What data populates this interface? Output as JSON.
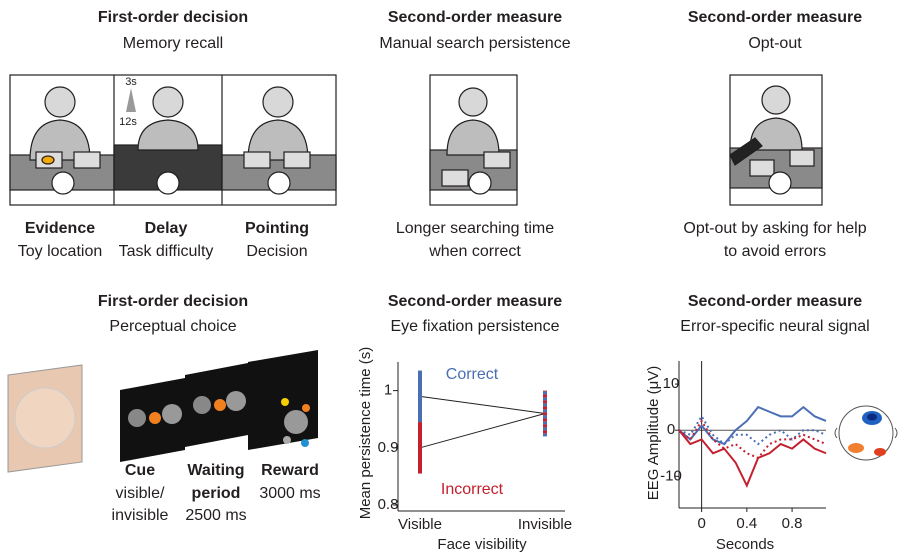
{
  "panels": [
    {
      "title": "First-order decision",
      "subtitle": "Memory recall",
      "captions": [
        {
          "head": "Evidence",
          "text": "Toy location"
        },
        {
          "head": "Delay",
          "text": "Task difficulty"
        },
        {
          "head": "Pointing",
          "text": "Decision"
        }
      ],
      "delay_labels": [
        "3s",
        "12s"
      ]
    },
    {
      "title": "Second-order measure",
      "subtitle": "Manual search persistence",
      "caption": [
        "Longer searching time",
        "when correct"
      ]
    },
    {
      "title": "Second-order measure",
      "subtitle": "Opt-out",
      "caption": [
        "Opt-out by asking for help",
        "to avoid errors"
      ]
    },
    {
      "title": "First-order decision",
      "subtitle": "Perceptual choice",
      "steps": [
        {
          "head": [
            "Cue"
          ],
          "text": [
            "visible/",
            "invisible"
          ]
        },
        {
          "head": [
            "Waiting",
            "period"
          ],
          "text": [
            "2500 ms"
          ]
        },
        {
          "head": [
            "Reward"
          ],
          "text": [
            "3000 ms"
          ]
        }
      ]
    },
    {
      "title": "Second-order measure",
      "subtitle": "Eye fixation persistence"
    },
    {
      "title": "Second-order measure",
      "subtitle": "Error-specific neural signal"
    }
  ],
  "chart_data": [
    {
      "type": "errorbar",
      "y_label": "Mean persistence time (s)",
      "x_label": "Face visibility",
      "categories": [
        "Visible",
        "Invisible"
      ],
      "series": [
        {
          "name": "Correct",
          "color": "#4a6fb5",
          "values": [
            0.99,
            0.96
          ],
          "errors": [
            0.045,
            0.04
          ]
        },
        {
          "name": "Incorrect",
          "color": "#c4202f",
          "values": [
            0.9,
            0.96
          ],
          "errors": [
            0.045,
            0.04
          ]
        }
      ],
      "ylim": [
        0.8,
        1.05
      ],
      "yticks": [
        0.8,
        0.9,
        1
      ]
    },
    {
      "type": "line",
      "y_label": "EEG Amplitude (μV)",
      "x_label": "Seconds",
      "x": [
        -0.2,
        -0.1,
        0,
        0.1,
        0.2,
        0.3,
        0.4,
        0.5,
        0.6,
        0.7,
        0.8,
        0.9,
        1.0,
        1.1
      ],
      "series": [
        {
          "color": "#4a6fb5",
          "dashed": false,
          "values": [
            0,
            -2,
            1,
            -2,
            -3,
            0,
            2,
            5,
            4,
            3,
            3,
            5,
            3,
            2
          ]
        },
        {
          "color": "#c4202f",
          "dashed": false,
          "values": [
            0,
            -3,
            -2,
            -5,
            -4,
            -7,
            -12,
            -6,
            -5,
            -3,
            -4,
            -2,
            -4,
            -5
          ]
        },
        {
          "color": "#4a6fb5",
          "dashed": true,
          "values": [
            0,
            -1,
            3,
            -1,
            -3,
            -1,
            -1,
            -3,
            -1,
            0,
            -2,
            0,
            0,
            -1
          ]
        },
        {
          "color": "#c4202f",
          "dashed": true,
          "values": [
            0,
            -2,
            2,
            -2,
            -4,
            -3,
            -5,
            -6,
            -3,
            -2,
            -2,
            -1,
            -2,
            -3
          ]
        }
      ],
      "xlim": [
        -0.2,
        1.1
      ],
      "ylim": [
        -16,
        15
      ],
      "xticks": [
        0,
        0.4,
        0.8
      ],
      "yticks": [
        -10,
        0,
        10
      ]
    }
  ]
}
